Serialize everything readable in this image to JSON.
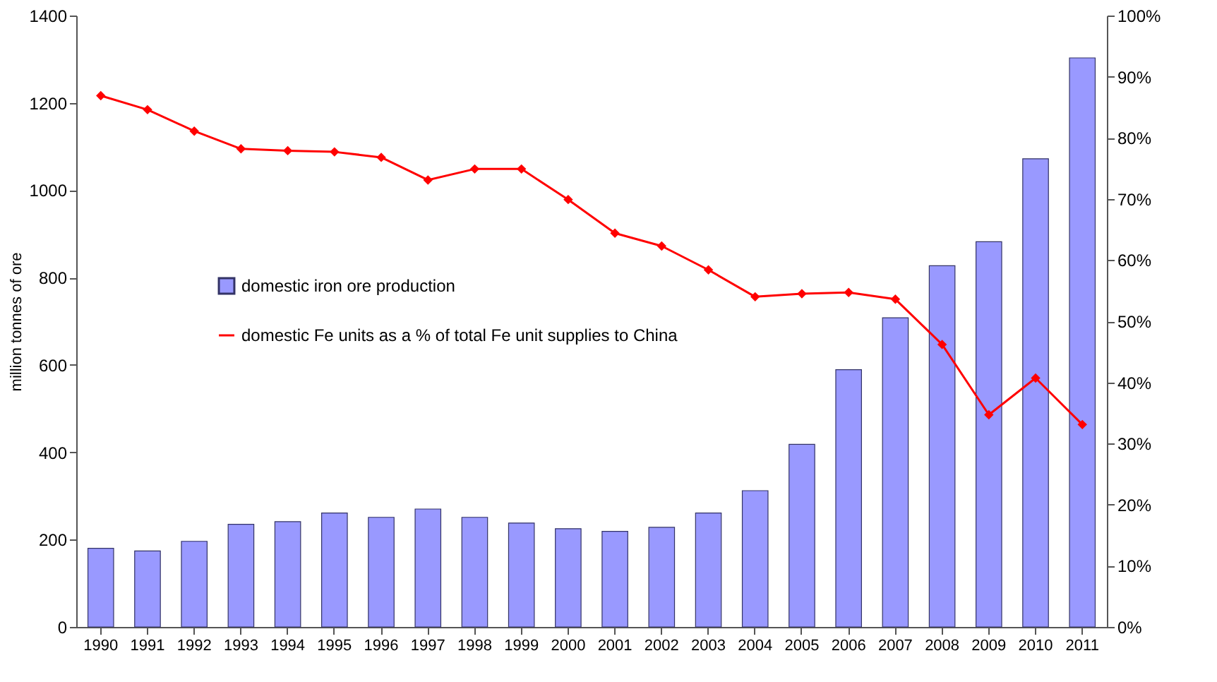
{
  "chart_data": {
    "type": "bar",
    "ylabel": "million tonnes of ore",
    "categories": [
      "1990",
      "1991",
      "1992",
      "1993",
      "1994",
      "1995",
      "1996",
      "1997",
      "1998",
      "1999",
      "2000",
      "2001",
      "2002",
      "2003",
      "2004",
      "2005",
      "2006",
      "2007",
      "2008",
      "2009",
      "2010",
      "2011"
    ],
    "series": [
      {
        "name": "domestic iron ore production",
        "color": "#9999ff",
        "values": [
          180,
          174,
          196,
          235,
          241,
          261,
          251,
          270,
          251,
          238,
          225,
          219,
          228,
          261,
          312,
          418,
          589,
          708,
          827,
          882,
          1072,
          1303
        ]
      },
      {
        "name": "domestic Fe units as a % of total Fe unit supplies to China",
        "type": "line",
        "axis": "y2",
        "color": "#ff0000",
        "marker": "diamond",
        "values": [
          86.9,
          84.6,
          81.1,
          78.2,
          77.9,
          77.7,
          76.8,
          73.1,
          74.9,
          74.9,
          69.9,
          64.4,
          62.3,
          58.4,
          54.0,
          54.5,
          54.7,
          53.6,
          46.2,
          34.7,
          40.7,
          33.1
        ]
      }
    ],
    "ylim": [
      0,
      1400
    ],
    "yticks": [
      0,
      200,
      400,
      600,
      800,
      1000,
      1200,
      1400
    ],
    "y2lim": [
      0,
      100
    ],
    "y2ticks": [
      {
        "value": 0,
        "label": "0%"
      },
      {
        "value": 10,
        "label": "10%"
      },
      {
        "value": 20,
        "label": "20%"
      },
      {
        "value": 30,
        "label": "30%"
      },
      {
        "value": 40,
        "label": "40%"
      },
      {
        "value": 50,
        "label": "50%"
      },
      {
        "value": 60,
        "label": "60%"
      },
      {
        "value": 70,
        "label": "70%"
      },
      {
        "value": 80,
        "label": "80%"
      },
      {
        "value": 90,
        "label": "90%"
      },
      {
        "value": 100,
        "label": "100%"
      }
    ],
    "legend": "left",
    "grid": false
  }
}
